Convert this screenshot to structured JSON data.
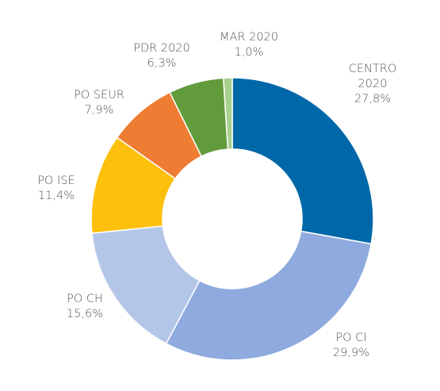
{
  "chart_data": {
    "type": "pie",
    "donut": true,
    "series": [
      {
        "name": "",
        "values": [
          {
            "label": [
              "CENTRO",
              "2020"
            ],
            "value": 27.8,
            "value_label": "27,8%",
            "color": "#0068a8"
          },
          {
            "label": [
              "PO CI"
            ],
            "value": 29.9,
            "value_label": "29,9%",
            "color": "#8eaade"
          },
          {
            "label": [
              "PO CH"
            ],
            "value": 15.6,
            "value_label": "15,6%",
            "color": "#b4c6e8"
          },
          {
            "label": [
              "PO ISE"
            ],
            "value": 11.4,
            "value_label": "11,4%",
            "color": "#fdc00c"
          },
          {
            "label": [
              "PO SEUR"
            ],
            "value": 7.9,
            "value_label": "7,9%",
            "color": "#ee7c33"
          },
          {
            "label": [
              "PDR 2020"
            ],
            "value": 6.3,
            "value_label": "6,3%",
            "color": "#629b3c"
          },
          {
            "label": [
              "MAR 2020"
            ],
            "value": 1.0,
            "value_label": "1,0%",
            "color": "#a8d08e"
          }
        ]
      }
    ],
    "start_angle_deg": 0,
    "direction": "clockwise",
    "legend": "none",
    "data_labels": "outside"
  }
}
